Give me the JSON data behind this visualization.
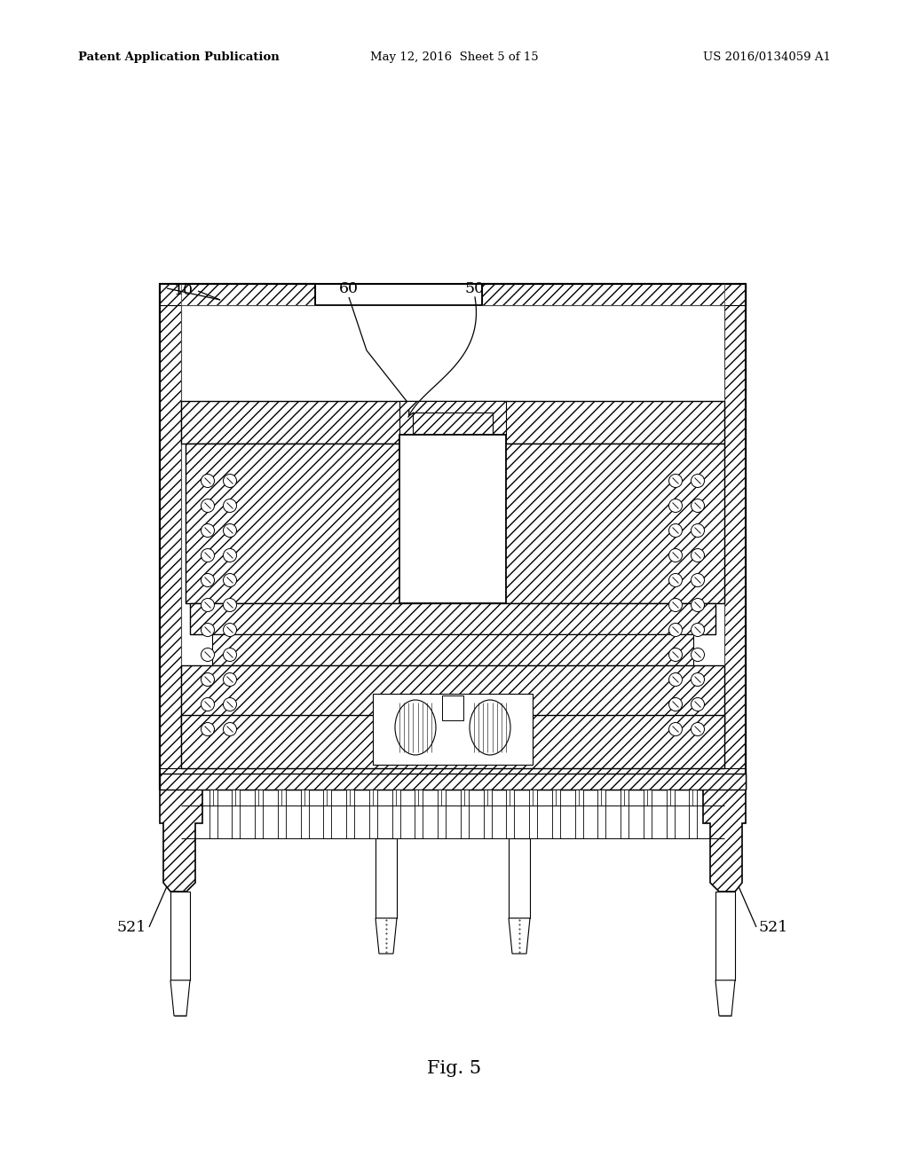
{
  "header_left": "Patent Application Publication",
  "header_mid": "May 12, 2016  Sheet 5 of 15",
  "header_right": "US 2016/0134059 A1",
  "fig_label": "Fig. 5",
  "bg": "#ffffff",
  "lc": "#000000"
}
